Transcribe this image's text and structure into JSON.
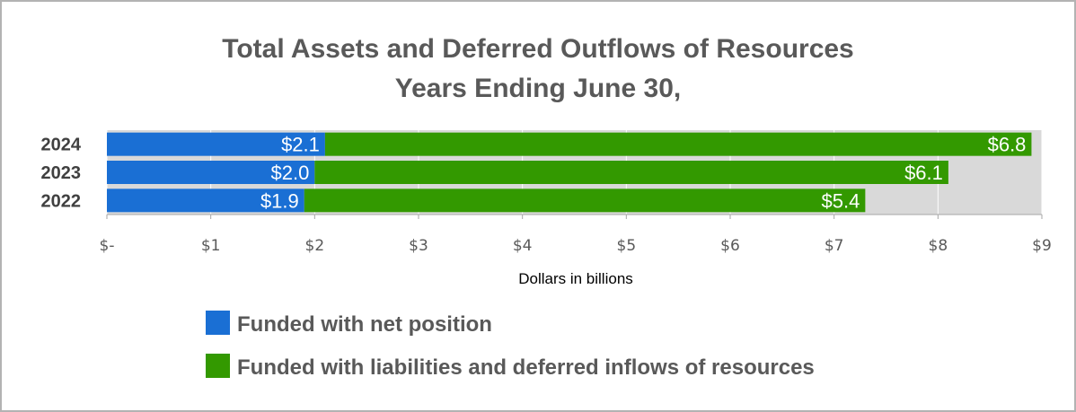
{
  "chart_data": {
    "type": "bar",
    "orientation": "horizontal",
    "stacked": true,
    "title": [
      "Total Assets and Deferred Outflows of Resources",
      "Years Ending June 30,"
    ],
    "xlabel": "Dollars in billions",
    "ylabel": "",
    "categories": [
      "2024",
      "2023",
      "2022"
    ],
    "series": [
      {
        "name": "Funded with net position",
        "color": "#1a6fd4",
        "values": [
          2.1,
          2.0,
          1.9
        ],
        "labels": [
          "$2.1",
          "$2.0",
          "$1.9"
        ]
      },
      {
        "name": "Funded with liabilities and deferred inflows of resources",
        "color": "#339900",
        "values": [
          6.8,
          6.1,
          5.4
        ],
        "labels": [
          "$6.8",
          "$6.1",
          "$5.4"
        ]
      }
    ],
    "xlim": [
      0,
      9
    ],
    "xticks": [
      0,
      1,
      2,
      3,
      4,
      5,
      6,
      7,
      8,
      9
    ],
    "xtick_labels": [
      "$-",
      "$1",
      "$2",
      "$3",
      "$4",
      "$5",
      "$6",
      "$7",
      "$8",
      "$9"
    ],
    "plot_background": "#d9d9d9",
    "grid": true,
    "legend_position": "bottom"
  }
}
